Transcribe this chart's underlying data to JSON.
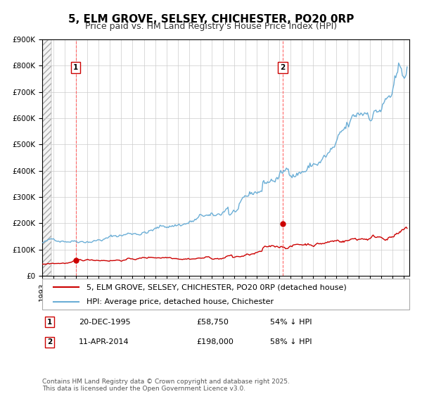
{
  "title": "5, ELM GROVE, SELSEY, CHICHESTER, PO20 0RP",
  "subtitle": "Price paid vs. HM Land Registry's House Price Index (HPI)",
  "ylim": [
    0,
    900000
  ],
  "yticks": [
    0,
    100000,
    200000,
    300000,
    400000,
    500000,
    600000,
    700000,
    800000,
    900000
  ],
  "hpi_color": "#6baed6",
  "price_color": "#cc0000",
  "marker1_date": 1995.97,
  "marker1_price": 58750,
  "marker2_date": 2014.28,
  "marker2_price": 198000,
  "vline_color": "#ff6666",
  "background_color": "#ffffff",
  "grid_color": "#cccccc",
  "legend_label_price": "5, ELM GROVE, SELSEY, CHICHESTER, PO20 0RP (detached house)",
  "legend_label_hpi": "HPI: Average price, detached house, Chichester",
  "footnote": "Contains HM Land Registry data © Crown copyright and database right 2025.\nThis data is licensed under the Open Government Licence v3.0.",
  "title_fontsize": 11,
  "subtitle_fontsize": 9,
  "tick_fontsize": 7.5,
  "legend_fontsize": 8,
  "annotation_fontsize": 8,
  "footnote_fontsize": 6.5
}
